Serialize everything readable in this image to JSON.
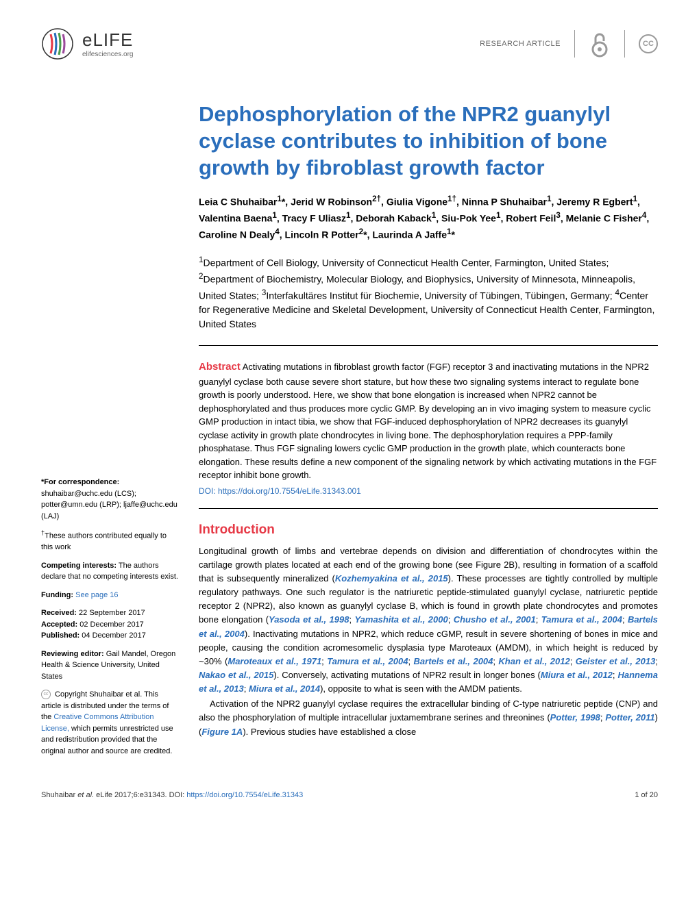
{
  "header": {
    "logo_text": "eLIFE",
    "logo_subtext": "elifesciences.org",
    "article_type": "RESEARCH ARTICLE",
    "oa_label": "Open Access",
    "cc_label": "CC"
  },
  "title": "Dephosphorylation of the NPR2 guanylyl cyclase contributes to inhibition of bone growth by fibroblast growth factor",
  "authors_html": "Leia C Shuhaibar<sup>1</sup>*, Jerid W Robinson<sup>2†</sup>, Giulia Vigone<sup>1†</sup>, Ninna P Shuhaibar<sup>1</sup>, Jeremy R Egbert<sup>1</sup>, Valentina Baena<sup>1</sup>, Tracy F Uliasz<sup>1</sup>, Deborah Kaback<sup>1</sup>, Siu-Pok Yee<sup>1</sup>, Robert Feil<sup>3</sup>, Melanie C Fisher<sup>4</sup>, Caroline N Dealy<sup>4</sup>, Lincoln R Potter<sup>2</sup>*, Laurinda A Jaffe<sup>1</sup>*",
  "affiliations_html": "<sup>1</sup>Department of Cell Biology, University of Connecticut Health Center, Farmington, United States; <sup>2</sup>Department of Biochemistry, Molecular Biology, and Biophysics, University of Minnesota, Minneapolis, United States; <sup>3</sup>Interfakultäres Institut für Biochemie, University of Tübingen, Tübingen, Germany; <sup>4</sup>Center for Regenerative Medicine and Skeletal Development, University of Connecticut Health Center, Farmington, United States",
  "abstract": {
    "label": "Abstract",
    "text": " Activating mutations in fibroblast growth factor (FGF) receptor 3 and inactivating mutations in the NPR2 guanylyl cyclase both cause severe short stature, but how these two signaling systems interact to regulate bone growth is poorly understood. Here, we show that bone elongation is increased when NPR2 cannot be dephosphorylated and thus produces more cyclic GMP. By developing an in vivo imaging system to measure cyclic GMP production in intact tibia, we show that FGF-induced dephosphorylation of NPR2 decreases its guanylyl cyclase activity in growth plate chondrocytes in living bone. The dephosphorylation requires a PPP-family phosphatase. Thus FGF signaling lowers cyclic GMP production in the growth plate, which counteracts bone elongation. These results define a new component of the signaling network by which activating mutations in the FGF receptor inhibit bone growth.",
    "doi": "DOI: https://doi.org/10.7554/eLife.31343.001"
  },
  "sidebar": {
    "correspondence_label": "*For correspondence:",
    "correspondence_text": "shuhaibar@uchc.edu (LCS); potter@umn.edu (LRP); ljaffe@uchc.edu (LAJ)",
    "equal_contrib": "†These authors contributed equally to this work",
    "competing_label": "Competing interests:",
    "competing_text": " The authors declare that no competing interests exist.",
    "funding_label": "Funding:",
    "funding_link": "See page 16",
    "received_label": "Received:",
    "received_date": " 22 September 2017",
    "accepted_label": "Accepted:",
    "accepted_date": " 02 December 2017",
    "published_label": "Published:",
    "published_date": " 04 December 2017",
    "editor_label": "Reviewing editor: ",
    "editor_text": " Gail Mandel, Oregon Health & Science University, United States",
    "copyright_text": " Copyright Shuhaibar et al. This article is distributed under the terms of the ",
    "cc_link": "Creative Commons Attribution License,",
    "copyright_tail": " which permits unrestricted use and redistribution provided that the original author and source are credited."
  },
  "introduction": {
    "heading": "Introduction",
    "para1_pre": "Longitudinal growth of limbs and vertebrae depends on division and differentiation of chondrocytes within the cartilage growth plates located at each end of the growing bone (see Figure 2B), resulting in formation of a scaffold that is subsequently mineralized (",
    "ref1": "Kozhemyakina et al., 2015",
    "para1_mid1": "). These processes are tightly controlled by multiple regulatory pathways. One such regulator is the natriuretic peptide-stimulated guanylyl cyclase, natriuretic peptide receptor 2 (NPR2), also known as guanylyl cyclase B, which is found in growth plate chondrocytes and promotes bone elongation (",
    "ref2": "Yasoda et al., 1998",
    "ref3": "Yamashita et al., 2000",
    "ref4": "Chusho et al., 2001",
    "ref5": "Tamura et al., 2004",
    "ref6": "Bartels et al., 2004",
    "para1_mid2": "). Inactivating mutations in NPR2, which reduce cGMP, result in severe shortening of bones in mice and people, causing the condition acromesomelic dysplasia type Maroteaux (AMDM), in which height is reduced by ~30% (",
    "ref7": "Maroteaux et al., 1971",
    "ref8": "Tamura et al., 2004",
    "ref9": "Bartels et al., 2004",
    "ref10": "Khan et al., 2012",
    "ref11": "Geister et al., 2013",
    "ref12": "Nakao et al., 2015",
    "para1_mid3": "). Conversely, activating mutations of NPR2 result in longer bones (",
    "ref13": "Miura et al., 2012",
    "ref14": "Hannema et al., 2013",
    "ref15": "Miura et al., 2014",
    "para1_tail": "), opposite to what is seen with the AMDM patients.",
    "para2_pre": "Activation of the NPR2 guanylyl cyclase requires the extracellular binding of C-type natriuretic peptide (CNP) and also the phosphorylation of multiple intracellular juxtamembrane serines and threonines (",
    "ref16": "Potter, 1998",
    "ref17": "Potter, 2011",
    "para2_mid": ") (",
    "fig_ref": "Figure 1A",
    "para2_tail": "). Previous studies have established a close"
  },
  "footer": {
    "citation_pre": "Shuhaibar ",
    "citation_ital": "et al.",
    "citation_mid": " eLife 2017;6:e31343. ",
    "doi_label": "DOI: ",
    "doi_link": "https://doi.org/10.7554/eLife.31343",
    "page": "1 of 20"
  },
  "colors": {
    "primary_blue": "#2a6ebb",
    "accent_red": "#e63946",
    "text": "#000000",
    "muted": "#666666"
  }
}
